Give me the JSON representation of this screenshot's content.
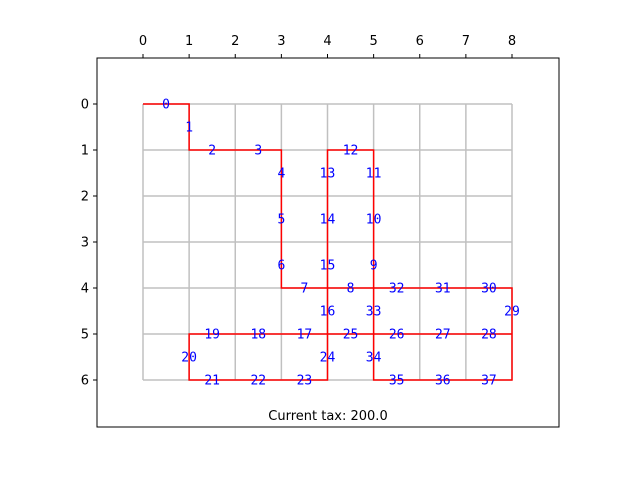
{
  "chart_data": {
    "type": "line",
    "title": "",
    "xlabel": "",
    "ylabel": "",
    "xlim": [
      -1,
      9
    ],
    "ylim": [
      7,
      -1
    ],
    "x_ticks": [
      0,
      1,
      2,
      3,
      4,
      5,
      6,
      7,
      8
    ],
    "y_ticks": [
      0,
      1,
      2,
      3,
      4,
      5,
      6
    ],
    "x_axis_position": "top",
    "y_axis_inverted": true,
    "grid": {
      "cols": [
        0,
        8
      ],
      "rows": [
        0,
        6
      ],
      "color": "#c0c0c0"
    },
    "path_color": "#ff0000",
    "label_color": "#0000ff",
    "path": [
      [
        0,
        0
      ],
      [
        1,
        0
      ],
      [
        1,
        1
      ],
      [
        2,
        1
      ],
      [
        3,
        1
      ],
      [
        3,
        2
      ],
      [
        3,
        3
      ],
      [
        3,
        4
      ],
      [
        4,
        4
      ],
      [
        5,
        4
      ],
      [
        5,
        3
      ],
      [
        5,
        2
      ],
      [
        5,
        1
      ],
      [
        4,
        1
      ],
      [
        4,
        2
      ],
      [
        4,
        3
      ],
      [
        4,
        4
      ],
      [
        4,
        5
      ],
      [
        4,
        6
      ],
      [
        3,
        6
      ],
      [
        2,
        6
      ],
      [
        1,
        6
      ],
      [
        1,
        5
      ],
      [
        2,
        5
      ],
      [
        3,
        5
      ],
      [
        4,
        5
      ],
      [
        5,
        5
      ],
      [
        5,
        6
      ],
      [
        6,
        6
      ],
      [
        7,
        6
      ],
      [
        8,
        6
      ],
      [
        8,
        5
      ],
      [
        7,
        5
      ],
      [
        6,
        5
      ],
      [
        5,
        5
      ],
      [
        5,
        4
      ],
      [
        6,
        4
      ],
      [
        7,
        4
      ],
      [
        8,
        4
      ],
      [
        8,
        5
      ]
    ],
    "edge_labels": [
      {
        "text": "0",
        "x": 0.5,
        "y": 0
      },
      {
        "text": "1",
        "x": 1,
        "y": 0.5
      },
      {
        "text": "2",
        "x": 1.5,
        "y": 1
      },
      {
        "text": "3",
        "x": 2.5,
        "y": 1
      },
      {
        "text": "4",
        "x": 3,
        "y": 1.5
      },
      {
        "text": "5",
        "x": 3,
        "y": 2.5
      },
      {
        "text": "6",
        "x": 3,
        "y": 3.5
      },
      {
        "text": "7",
        "x": 3.5,
        "y": 4
      },
      {
        "text": "8",
        "x": 4.5,
        "y": 4
      },
      {
        "text": "9",
        "x": 5,
        "y": 3.5
      },
      {
        "text": "10",
        "x": 5,
        "y": 2.5
      },
      {
        "text": "11",
        "x": 5,
        "y": 1.5
      },
      {
        "text": "12",
        "x": 4.5,
        "y": 1
      },
      {
        "text": "13",
        "x": 4,
        "y": 1.5
      },
      {
        "text": "14",
        "x": 4,
        "y": 2.5
      },
      {
        "text": "15",
        "x": 4,
        "y": 3.5
      },
      {
        "text": "16",
        "x": 4,
        "y": 4.5
      },
      {
        "text": "17",
        "x": 3.5,
        "y": 5
      },
      {
        "text": "18",
        "x": 2.5,
        "y": 5
      },
      {
        "text": "19",
        "x": 1.5,
        "y": 5
      },
      {
        "text": "20",
        "x": 1,
        "y": 5.5
      },
      {
        "text": "21",
        "x": 1.5,
        "y": 6
      },
      {
        "text": "22",
        "x": 2.5,
        "y": 6
      },
      {
        "text": "23",
        "x": 3.5,
        "y": 6
      },
      {
        "text": "24",
        "x": 4,
        "y": 5.5
      },
      {
        "text": "25",
        "x": 4.5,
        "y": 5
      },
      {
        "text": "26",
        "x": 5.5,
        "y": 5
      },
      {
        "text": "27",
        "x": 6.5,
        "y": 5
      },
      {
        "text": "28",
        "x": 7.5,
        "y": 5
      },
      {
        "text": "29",
        "x": 8,
        "y": 4.5
      },
      {
        "text": "30",
        "x": 7.5,
        "y": 4
      },
      {
        "text": "31",
        "x": 6.5,
        "y": 4
      },
      {
        "text": "32",
        "x": 5.5,
        "y": 4
      },
      {
        "text": "33",
        "x": 5,
        "y": 4.5
      },
      {
        "text": "34",
        "x": 5,
        "y": 5.5
      },
      {
        "text": "35",
        "x": 5.5,
        "y": 6
      },
      {
        "text": "36",
        "x": 6.5,
        "y": 6
      },
      {
        "text": "37",
        "x": 7.5,
        "y": 6
      }
    ],
    "footer": "Current tax: 200.0"
  }
}
